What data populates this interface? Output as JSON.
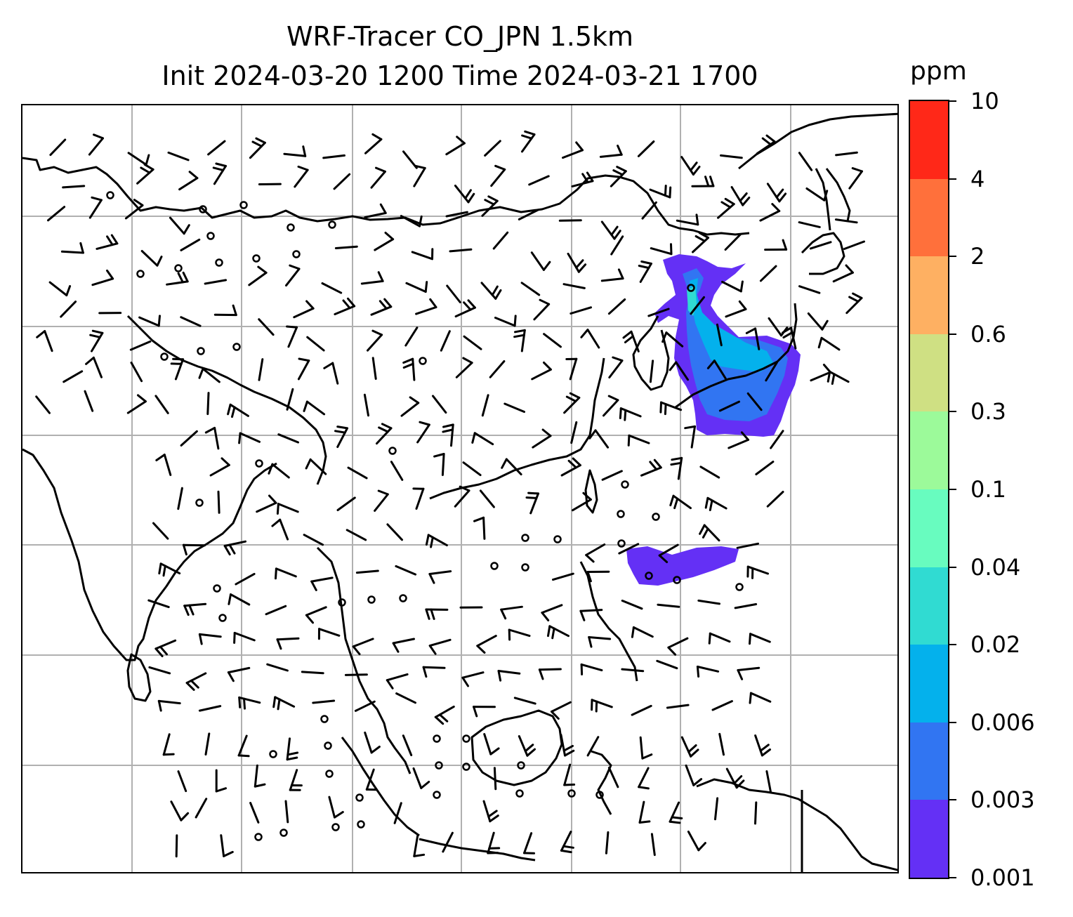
{
  "title": {
    "line1": "WRF-Tracer CO_JPN 1.5km",
    "line2": "Init 2024-03-20 1200 Time 2024-03-21 1700"
  },
  "colorbar": {
    "unit": "ppm",
    "levels": [
      "0.001",
      "0.003",
      "0.006",
      "0.02",
      "0.04",
      "0.1",
      "0.3",
      "0.6",
      "2",
      "4",
      "10"
    ],
    "colors": [
      "#6430f5",
      "#3175f2",
      "#04b1ec",
      "#30dbd2",
      "#68fcbf",
      "#9cfa9a",
      "#cfe083",
      "#feb062",
      "#ff703b",
      "#ff2818"
    ]
  },
  "map": {
    "gridlines": true,
    "gridline_color": "#b0b0b0",
    "coastline_color": "#000000",
    "plume_color": "#6430f5",
    "barb_color": "#000000",
    "calm_marker": "circle"
  }
}
